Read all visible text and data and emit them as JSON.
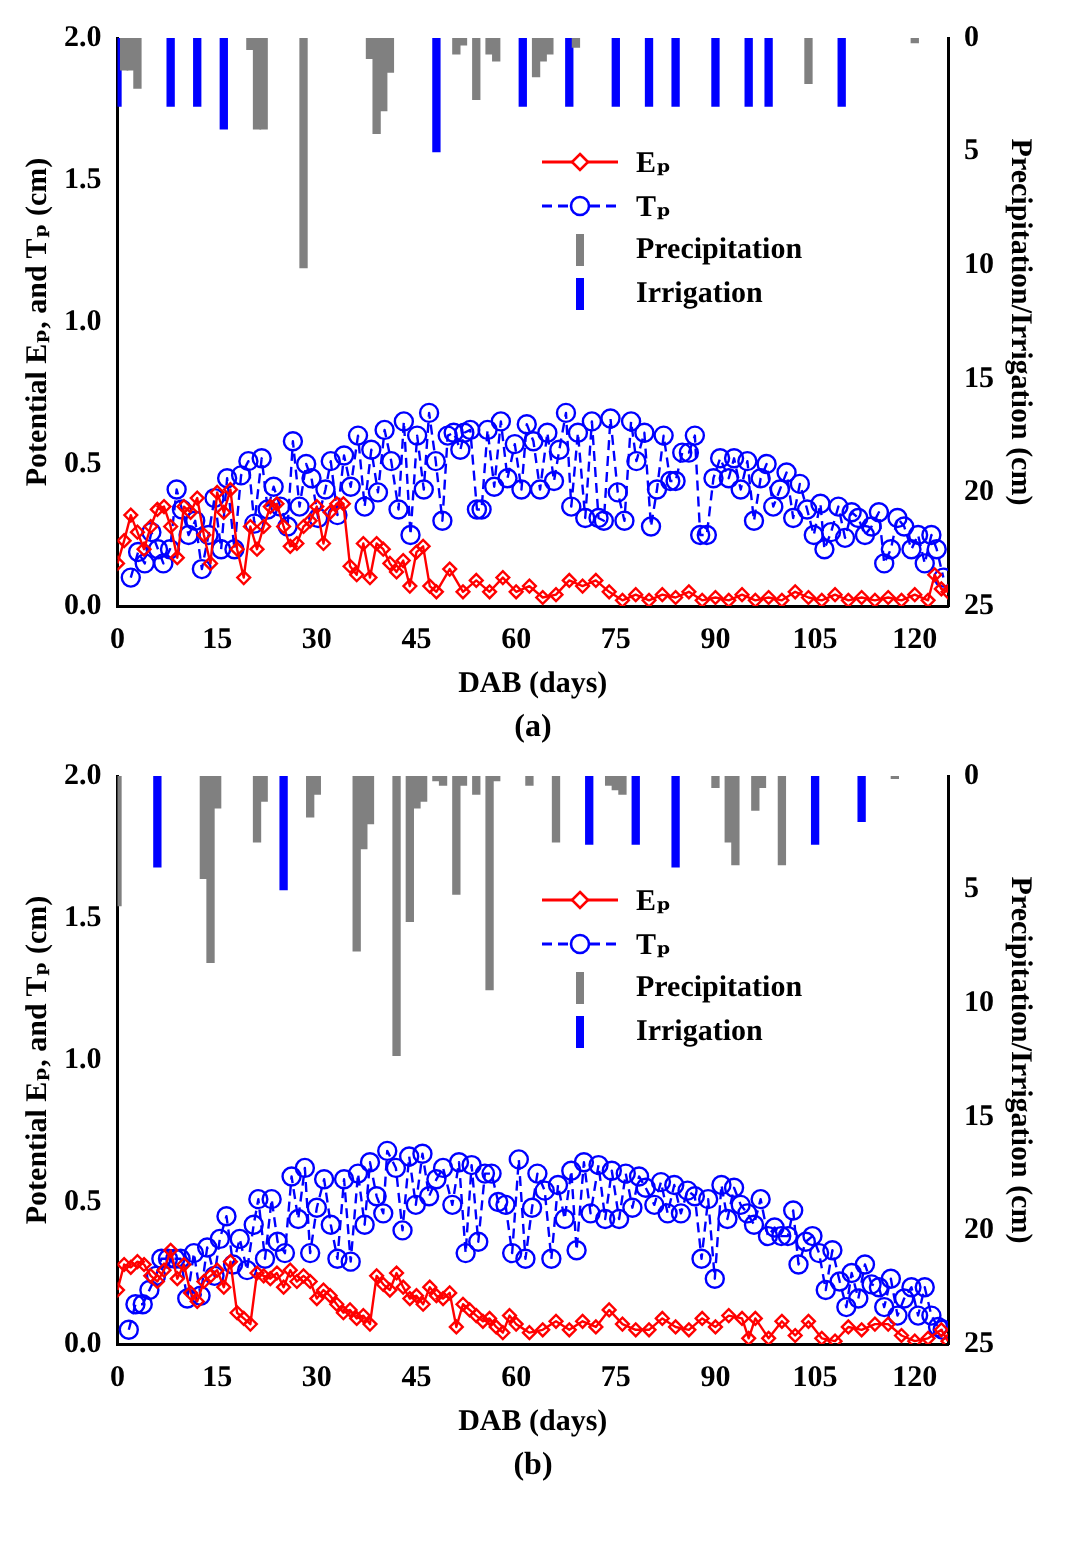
{
  "chart_data": [
    {
      "type": "line",
      "xlabel": "DAB (days)",
      "ylabel": "Potential Eₚ, and Tₚ (cm)",
      "y2label": "Precipitation/Irrigation (cm)",
      "legend": "top right",
      "annotations": [
        "(a)"
      ],
      "xlim": [
        0,
        125
      ],
      "xticks": [
        0,
        15,
        30,
        45,
        60,
        75,
        90,
        105,
        120
      ],
      "ylim": [
        0,
        2
      ],
      "yticks": [
        {
          "value": 0,
          "label": "0.0"
        },
        {
          "value": 0.5,
          "label": "0.5"
        },
        {
          "value": 1,
          "label": "1.0"
        },
        {
          "value": 1.5,
          "label": "1.5"
        },
        {
          "value": 2,
          "label": "2.0"
        }
      ],
      "y2lim": [
        25,
        0
      ],
      "y2ticks": [
        0,
        5,
        10,
        15,
        20,
        25
      ],
      "series": [
        {
          "name": "Eₚ",
          "color": "#ff0000",
          "marker": "diamond",
          "line_style": "solid",
          "x": [
            0,
            1,
            2,
            3,
            4,
            5,
            6,
            7,
            8,
            9,
            10,
            11,
            12,
            13,
            14,
            15,
            16,
            17,
            18,
            19,
            20,
            21,
            22,
            23,
            24,
            25,
            26,
            27,
            28,
            29,
            30,
            31,
            32,
            33,
            34,
            35,
            36,
            37,
            38,
            39,
            40,
            41,
            42,
            43,
            44,
            45,
            46,
            47,
            48,
            50,
            52,
            54,
            56,
            58,
            60,
            62,
            64,
            66,
            68,
            70,
            72,
            74,
            76,
            78,
            80,
            82,
            84,
            86,
            88,
            90,
            92,
            94,
            96,
            98,
            100,
            102,
            104,
            106,
            108,
            110,
            112,
            114,
            116,
            118,
            120,
            122,
            123,
            124,
            125
          ],
          "values": [
            0.15,
            0.23,
            0.32,
            0.26,
            0.2,
            0.28,
            0.34,
            0.35,
            0.28,
            0.17,
            0.35,
            0.33,
            0.38,
            0.25,
            0.15,
            0.4,
            0.33,
            0.41,
            0.2,
            0.1,
            0.28,
            0.2,
            0.28,
            0.35,
            0.36,
            0.28,
            0.21,
            0.22,
            0.28,
            0.3,
            0.35,
            0.22,
            0.33,
            0.36,
            0.36,
            0.14,
            0.11,
            0.22,
            0.1,
            0.22,
            0.2,
            0.15,
            0.12,
            0.16,
            0.07,
            0.19,
            0.21,
            0.07,
            0.05,
            0.13,
            0.05,
            0.09,
            0.05,
            0.1,
            0.05,
            0.07,
            0.03,
            0.04,
            0.09,
            0.07,
            0.09,
            0.05,
            0.02,
            0.04,
            0.02,
            0.04,
            0.03,
            0.05,
            0.02,
            0.03,
            0.02,
            0.04,
            0.02,
            0.03,
            0.02,
            0.05,
            0.03,
            0.02,
            0.04,
            0.02,
            0.03,
            0.02,
            0.03,
            0.02,
            0.04,
            0.02,
            0.11,
            0.06,
            0.05
          ]
        },
        {
          "name": "Tₚ",
          "color": "#0000ff",
          "marker": "circle",
          "line_style": "dashed",
          "x": [
            2.0,
            3.1,
            4.1,
            5.1,
            6.1,
            6.9,
            7.9,
            8.9,
            9.7,
            10.7,
            11.7,
            12.7,
            13.7,
            14.6,
            15.6,
            16.5,
            17.6,
            18.6,
            19.7,
            20.6,
            21.7,
            22.6,
            23.5,
            24.5,
            25.6,
            26.4,
            27.4,
            28.4,
            29.2,
            30.2,
            31.3,
            32.1,
            33.1,
            34.1,
            35.1,
            36.2,
            37.2,
            38.2,
            39.2,
            40.2,
            41.2,
            42.3,
            43.1,
            44.1,
            45.1,
            46.1,
            46.9,
            47.9,
            48.9,
            49.7,
            50.6,
            51.6,
            52.2,
            53.1,
            54.1,
            54.8,
            55.7,
            56.7,
            57.7,
            58.7,
            59.8,
            60.8,
            61.6,
            62.6,
            63.6,
            64.7,
            65.7,
            66.5,
            67.5,
            68.3,
            69.3,
            70.4,
            71.4,
            72.4,
            73.2,
            74.2,
            75.3,
            76.3,
            77.3,
            78.1,
            79.3,
            80.3,
            81.2,
            82.2,
            83.2,
            84.0,
            85.0,
            86.0,
            86.9,
            87.7,
            88.7,
            89.7,
            90.7,
            92.0,
            92.8,
            93.8,
            94.8,
            95.8,
            96.8,
            97.7,
            98.7,
            99.7,
            100.7,
            101.7,
            102.7,
            103.8,
            104.8,
            105.8,
            106.4,
            107.4,
            108.5,
            109.5,
            110.5,
            111.5,
            112.5,
            113.5,
            114.6,
            115.4,
            116.4,
            117.4,
            118.4,
            119.5,
            120.5,
            121.5,
            122.5,
            123.3,
            124.3
          ],
          "values": [
            0.1,
            0.19,
            0.15,
            0.26,
            0.2,
            0.15,
            0.2,
            0.41,
            0.34,
            0.25,
            0.3,
            0.13,
            0.25,
            0.38,
            0.2,
            0.45,
            0.2,
            0.46,
            0.51,
            0.29,
            0.52,
            0.34,
            0.42,
            0.35,
            0.28,
            0.58,
            0.35,
            0.5,
            0.45,
            0.31,
            0.41,
            0.51,
            0.32,
            0.53,
            0.42,
            0.6,
            0.35,
            0.55,
            0.4,
            0.62,
            0.51,
            0.34,
            0.65,
            0.25,
            0.6,
            0.41,
            0.68,
            0.51,
            0.3,
            0.6,
            0.61,
            0.55,
            0.61,
            0.62,
            0.34,
            0.34,
            0.62,
            0.42,
            0.65,
            0.45,
            0.57,
            0.41,
            0.64,
            0.58,
            0.41,
            0.61,
            0.44,
            0.55,
            0.68,
            0.35,
            0.61,
            0.31,
            0.65,
            0.31,
            0.3,
            0.66,
            0.4,
            0.3,
            0.65,
            0.51,
            0.61,
            0.28,
            0.41,
            0.6,
            0.44,
            0.44,
            0.54,
            0.54,
            0.6,
            0.25,
            0.25,
            0.45,
            0.52,
            0.45,
            0.52,
            0.41,
            0.51,
            0.3,
            0.45,
            0.5,
            0.35,
            0.41,
            0.47,
            0.31,
            0.43,
            0.34,
            0.25,
            0.36,
            0.2,
            0.26,
            0.35,
            0.24,
            0.33,
            0.31,
            0.25,
            0.28,
            0.33,
            0.15,
            0.2,
            0.31,
            0.28,
            0.2,
            0.25,
            0.15,
            0.25,
            0.2,
            0.1
          ]
        },
        {
          "name": "Precipitation",
          "type": "bar",
          "axis": "y2",
          "color": "#808080",
          "x": [
            1,
            2,
            3,
            20,
            21,
            22,
            28,
            38,
            39,
            40,
            41,
            51,
            52,
            54,
            56,
            57,
            63,
            64,
            65,
            69,
            104,
            120
          ],
          "values": [
            1.4,
            1.4,
            2.2,
            0.5,
            4.0,
            4.0,
            10.1,
            0.9,
            4.2,
            3.2,
            1.5,
            0.7,
            0.3,
            2.7,
            0.7,
            1.0,
            1.7,
            1.0,
            0.7,
            0.4,
            2.0,
            0.2
          ]
        },
        {
          "name": "Irrigation",
          "type": "bar",
          "axis": "y2",
          "color": "#0000ff",
          "x": [
            0,
            8,
            12,
            16,
            48,
            61,
            68,
            75,
            80,
            84,
            90,
            95,
            98,
            109
          ],
          "values": [
            3,
            3,
            3,
            4,
            5,
            3,
            3,
            3,
            3,
            3,
            3,
            3,
            3,
            3
          ]
        }
      ]
    },
    {
      "type": "line",
      "xlabel": "DAB (days)",
      "ylabel": "Potential Eₚ, and Tₚ (cm)",
      "y2label": "Precipitation/Irrigation (cm)",
      "legend": "top right",
      "annotations": [
        "(b)"
      ],
      "xlim": [
        0,
        125
      ],
      "xticks": [
        0,
        15,
        30,
        45,
        60,
        75,
        90,
        105,
        120
      ],
      "ylim": [
        0,
        2
      ],
      "yticks": [
        {
          "value": 0,
          "label": "0.0"
        },
        {
          "value": 0.5,
          "label": "0.5"
        },
        {
          "value": 1,
          "label": "1.0"
        },
        {
          "value": 1.5,
          "label": "1.5"
        },
        {
          "value": 2,
          "label": "2.0"
        }
      ],
      "y2lim": [
        25,
        0
      ],
      "y2ticks": [
        0,
        5,
        10,
        15,
        20,
        25
      ],
      "series": [
        {
          "name": "Eₚ",
          "color": "#ff0000",
          "marker": "diamond",
          "line_style": "solid",
          "x": [
            0,
            1,
            2,
            3,
            4,
            5,
            6,
            7,
            8,
            9,
            10,
            11,
            12,
            13,
            14,
            15,
            16,
            17,
            18,
            19,
            20,
            21,
            22,
            23,
            24,
            25,
            26,
            27,
            28,
            29,
            30,
            31,
            32,
            33,
            34,
            35,
            36,
            37,
            38,
            39,
            40,
            41,
            42,
            43,
            44,
            45,
            46,
            47,
            48,
            49,
            50,
            51,
            52,
            53,
            54,
            55,
            56,
            57,
            58,
            59,
            60,
            62,
            64,
            66,
            68,
            70,
            72,
            74,
            76,
            78,
            80,
            82,
            84,
            86,
            88,
            90,
            92,
            94,
            95,
            96,
            98,
            100,
            102,
            104,
            106,
            108,
            110,
            112,
            114,
            116,
            118,
            120,
            122,
            124,
            125
          ],
          "values": [
            0.19,
            0.28,
            0.27,
            0.29,
            0.28,
            0.24,
            0.22,
            0.26,
            0.33,
            0.23,
            0.28,
            0.18,
            0.15,
            0.22,
            0.24,
            0.26,
            0.2,
            0.29,
            0.11,
            0.09,
            0.07,
            0.25,
            0.24,
            0.23,
            0.25,
            0.2,
            0.26,
            0.22,
            0.24,
            0.22,
            0.16,
            0.19,
            0.17,
            0.14,
            0.11,
            0.12,
            0.09,
            0.1,
            0.07,
            0.24,
            0.21,
            0.19,
            0.25,
            0.2,
            0.16,
            0.17,
            0.14,
            0.2,
            0.17,
            0.16,
            0.18,
            0.06,
            0.14,
            0.12,
            0.1,
            0.08,
            0.09,
            0.06,
            0.04,
            0.1,
            0.07,
            0.04,
            0.05,
            0.08,
            0.05,
            0.08,
            0.06,
            0.12,
            0.07,
            0.05,
            0.05,
            0.09,
            0.06,
            0.05,
            0.09,
            0.06,
            0.1,
            0.09,
            0.02,
            0.09,
            0.02,
            0.08,
            0.03,
            0.08,
            0.02,
            0.01,
            0.06,
            0.05,
            0.07,
            0.07,
            0.03,
            0.01,
            0.02,
            0.05,
            0.01
          ]
        },
        {
          "name": "Tₚ",
          "color": "#0000ff",
          "marker": "circle",
          "line_style": "dashed",
          "x": [
            1.7,
            2.7,
            3.8,
            4.8,
            5.8,
            6.6,
            7.6,
            8.7,
            9.5,
            10.5,
            11.5,
            12.5,
            13.5,
            14.6,
            15.4,
            16.4,
            17.4,
            18.4,
            19.5,
            20.5,
            21.2,
            22.2,
            23.2,
            24.1,
            25.2,
            26.2,
            27.2,
            28.2,
            29.0,
            30.0,
            31.1,
            32.1,
            33.1,
            34.1,
            35.1,
            36.2,
            37.2,
            38.0,
            39.0,
            40.0,
            40.6,
            41.9,
            42.9,
            43.9,
            44.9,
            45.9,
            46.9,
            48.0,
            49.0,
            50.4,
            51.4,
            52.4,
            53.3,
            54.3,
            55.3,
            56.3,
            57.3,
            58.4,
            59.4,
            60.4,
            61.4,
            62.4,
            63.2,
            64.3,
            65.3,
            66.3,
            67.3,
            68.3,
            69.1,
            70.2,
            71.2,
            72.4,
            73.4,
            74.4,
            75.5,
            76.5,
            77.5,
            78.5,
            79.5,
            80.8,
            81.8,
            82.8,
            83.8,
            84.8,
            85.8,
            86.9,
            87.9,
            88.9,
            89.9,
            90.9,
            91.8,
            92.8,
            93.8,
            94.8,
            95.8,
            96.8,
            97.9,
            98.9,
            99.9,
            100.9,
            101.7,
            102.5,
            103.6,
            104.6,
            105.6,
            106.6,
            107.6,
            108.7,
            109.7,
            110.5,
            111.5,
            112.5,
            113.5,
            114.6,
            115.4,
            116.4,
            117.4,
            118.4,
            119.5,
            120.5,
            121.5,
            122.5,
            123.5,
            124.2
          ],
          "values": [
            0.05,
            0.14,
            0.14,
            0.19,
            0.24,
            0.3,
            0.3,
            0.3,
            0.3,
            0.16,
            0.32,
            0.17,
            0.34,
            0.24,
            0.37,
            0.45,
            0.28,
            0.37,
            0.26,
            0.42,
            0.51,
            0.3,
            0.51,
            0.36,
            0.32,
            0.59,
            0.44,
            0.62,
            0.32,
            0.48,
            0.58,
            0.42,
            0.3,
            0.58,
            0.29,
            0.6,
            0.42,
            0.64,
            0.52,
            0.46,
            0.68,
            0.62,
            0.4,
            0.66,
            0.49,
            0.67,
            0.52,
            0.58,
            0.62,
            0.49,
            0.64,
            0.32,
            0.63,
            0.36,
            0.6,
            0.6,
            0.5,
            0.49,
            0.32,
            0.65,
            0.3,
            0.48,
            0.6,
            0.54,
            0.3,
            0.56,
            0.44,
            0.61,
            0.33,
            0.64,
            0.46,
            0.63,
            0.44,
            0.61,
            0.44,
            0.6,
            0.48,
            0.59,
            0.55,
            0.49,
            0.57,
            0.46,
            0.56,
            0.46,
            0.54,
            0.52,
            0.3,
            0.51,
            0.23,
            0.56,
            0.44,
            0.55,
            0.49,
            0.46,
            0.42,
            0.51,
            0.38,
            0.41,
            0.38,
            0.38,
            0.47,
            0.28,
            0.36,
            0.38,
            0.32,
            0.19,
            0.33,
            0.22,
            0.13,
            0.25,
            0.16,
            0.28,
            0.21,
            0.2,
            0.13,
            0.23,
            0.1,
            0.16,
            0.2,
            0.1,
            0.2,
            0.1,
            0.06,
            0.05
          ]
        },
        {
          "name": "Precipitation",
          "type": "bar",
          "axis": "y2",
          "color": "#808080",
          "x": [
            0,
            13,
            14,
            15,
            21,
            22,
            29,
            30,
            36,
            37,
            38,
            42,
            44,
            45,
            46,
            48,
            49,
            51,
            52,
            54,
            56,
            57,
            62,
            66,
            74,
            75,
            76,
            90,
            92,
            93,
            96,
            97,
            100,
            117
          ],
          "values": [
            5.7,
            4.5,
            8.2,
            1.4,
            2.9,
            1.1,
            1.8,
            0.8,
            7.7,
            3.2,
            2.1,
            12.3,
            6.4,
            1.4,
            1.1,
            0.2,
            0.4,
            5.2,
            0.4,
            0.8,
            9.4,
            0.2,
            0.4,
            2.9,
            0.4,
            0.6,
            0.8,
            0.5,
            2.9,
            3.9,
            1.5,
            0.5,
            3.9,
            0.1
          ]
        },
        {
          "name": "Irrigation",
          "type": "bar",
          "axis": "y2",
          "color": "#0000ff",
          "x": [
            6,
            25,
            71,
            78,
            84,
            105,
            112
          ],
          "values": [
            4,
            5,
            3,
            3,
            4,
            3,
            2
          ]
        }
      ]
    }
  ]
}
